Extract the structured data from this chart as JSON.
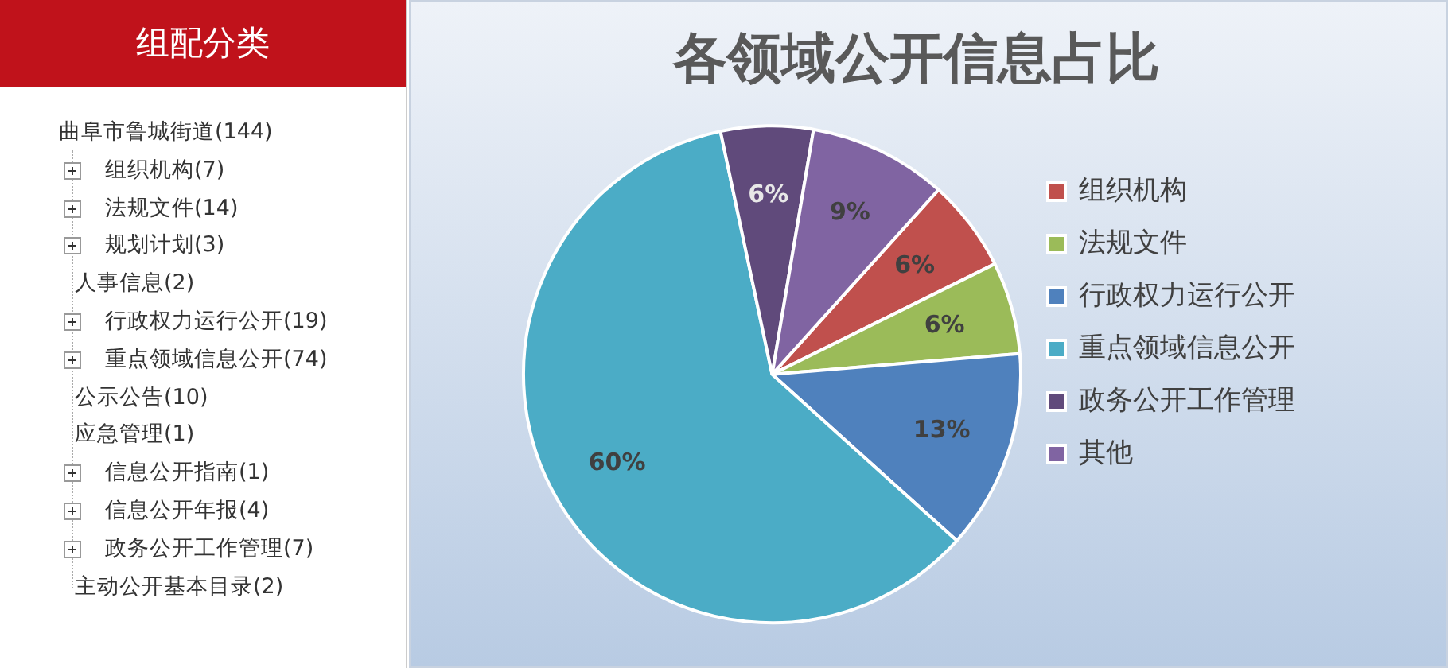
{
  "chart_data": [
    {
      "type": "other",
      "title": "组配分类",
      "annotations": [
        "曲阜市鲁城街道(144)",
        "组织机构(7)",
        "法规文件(14)",
        "规划计划(3)",
        "人事信息(2)",
        "行政权力运行公开(19)",
        "重点领域信息公开(74)",
        "公示公告(10)",
        "应急管理(1)",
        "信息公开指南(1)",
        "信息公开年报(4)",
        "政务公开工作管理(7)",
        "主动公开基本目录(2)"
      ]
    },
    {
      "type": "pie",
      "title": "各领域公开信息占比",
      "categories": [
        "组织机构",
        "法规文件",
        "行政权力运行公开",
        "重点领域信息公开",
        "政务公开工作管理",
        "其他"
      ],
      "values": [
        6,
        6,
        13,
        60,
        6,
        9
      ],
      "value_labels": [
        "6%",
        "6%",
        "13%",
        "60%",
        "6%",
        "9%"
      ],
      "colors": [
        "#c0504d",
        "#9bbb59",
        "#4f81bd",
        "#4bacc6",
        "#604a7b",
        "#8064a2"
      ],
      "legend": "right"
    }
  ]
}
